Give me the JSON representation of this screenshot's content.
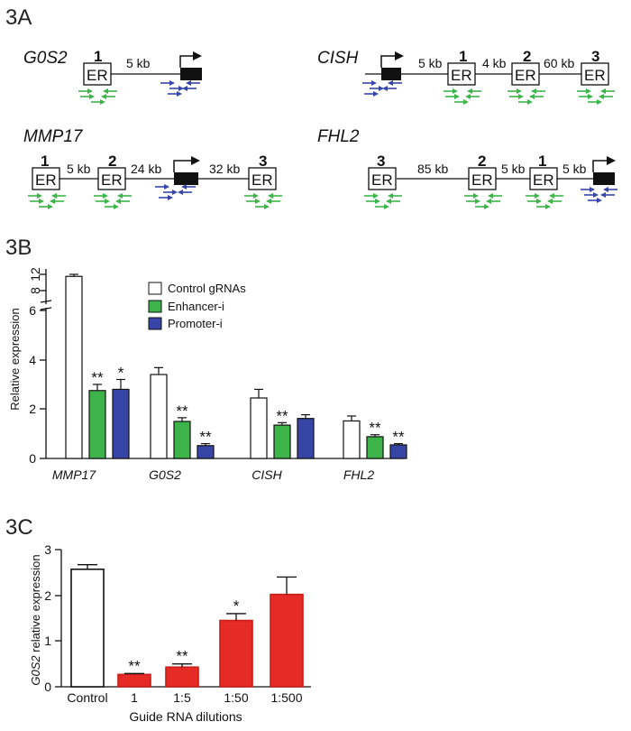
{
  "panels": {
    "a": "3A",
    "b": "3B",
    "c": "3C"
  },
  "colors": {
    "green": "#3cb44a",
    "blue": "#3745a6",
    "red": "#e62a25",
    "white": "#ffffff"
  },
  "diagrams": {
    "g0s2": {
      "name": "G0S2",
      "er_label": "ER",
      "er_nums": [
        "1"
      ],
      "distances": [
        "5 kb"
      ]
    },
    "cish": {
      "name": "CISH",
      "er_label": "ER",
      "er_nums": [
        "1",
        "2",
        "3"
      ],
      "distances": [
        "5 kb",
        "4 kb",
        "60 kb"
      ]
    },
    "mmp17": {
      "name": "MMP17",
      "er_label": "ER",
      "er_nums": [
        "1",
        "2",
        "3"
      ],
      "distances": [
        "5 kb",
        "24 kb",
        "32 kb"
      ]
    },
    "fhl2": {
      "name": "FHL2",
      "er_label": "ER",
      "er_nums": [
        "3",
        "2",
        "1"
      ],
      "distances": [
        "85 kb",
        "5 kb",
        "5 kb"
      ]
    }
  },
  "chart_data": [
    {
      "type": "bar",
      "ylabel": "Relative expression",
      "ylim_lower": [
        0,
        6
      ],
      "ylim_upper": [
        6,
        13
      ],
      "yticks_lower": [
        "0",
        "2",
        "4",
        "6"
      ],
      "yticks_upper": [
        "8",
        "12"
      ],
      "categories": [
        "MMP17",
        "G0S2",
        "CISH",
        "FHL2"
      ],
      "series": [
        {
          "name": "Control gRNAs",
          "color": "#ffffff",
          "values": [
            11.5,
            3.4,
            2.45,
            1.52
          ],
          "errors": [
            0.5,
            0.28,
            0.35,
            0.2
          ],
          "sig": [
            "",
            "",
            "",
            ""
          ]
        },
        {
          "name": "Enhancer-i",
          "color": "#3cb44a",
          "values": [
            2.75,
            1.5,
            1.35,
            0.88
          ],
          "errors": [
            0.25,
            0.15,
            0.1,
            0.08
          ],
          "sig": [
            "**",
            "**",
            "**",
            "**"
          ]
        },
        {
          "name": "Promoter-i",
          "color": "#3745a6",
          "values": [
            2.8,
            0.52,
            1.62,
            0.55
          ],
          "errors": [
            0.4,
            0.08,
            0.15,
            0.05
          ],
          "sig": [
            "*",
            "**",
            "",
            "**"
          ]
        }
      ]
    },
    {
      "type": "bar",
      "ylabel_italic": "G0S2",
      "ylabel_rest": " relative expression",
      "xlabel": "Guide RNA dilutions",
      "ylim": [
        0,
        3
      ],
      "yticks": [
        "0",
        "1",
        "2",
        "3"
      ],
      "categories": [
        "Control",
        "1",
        "1:5",
        "1:50",
        "1:500"
      ],
      "values": [
        2.57,
        0.27,
        0.43,
        1.45,
        2.02
      ],
      "errors": [
        0.1,
        0.02,
        0.07,
        0.15,
        0.38
      ],
      "sig": [
        "",
        "**",
        "**",
        "*",
        ""
      ],
      "colors": [
        "#ffffff",
        "#e62a25",
        "#e62a25",
        "#e62a25",
        "#e62a25"
      ]
    }
  ]
}
